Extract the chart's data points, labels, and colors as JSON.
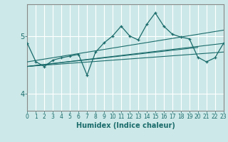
{
  "xlabel": "Humidex (Indice chaleur)",
  "xlim": [
    0,
    23
  ],
  "ylim": [
    3.7,
    5.55
  ],
  "yticks": [
    4,
    5
  ],
  "xticks": [
    0,
    1,
    2,
    3,
    4,
    5,
    6,
    7,
    8,
    9,
    10,
    11,
    12,
    13,
    14,
    15,
    16,
    17,
    18,
    19,
    20,
    21,
    22,
    23
  ],
  "bg_color": "#cde8e8",
  "grid_color": "#ffffff",
  "line_color": "#1a6b6b",
  "series": {
    "main": {
      "x": [
        0,
        1,
        2,
        3,
        4,
        5,
        6,
        7,
        8,
        9,
        10,
        11,
        12,
        13,
        14,
        15,
        16,
        17,
        18,
        19,
        20,
        21,
        22,
        23
      ],
      "y": [
        4.87,
        4.55,
        4.47,
        4.58,
        4.62,
        4.65,
        4.68,
        4.32,
        4.72,
        4.88,
        5.0,
        5.17,
        5.0,
        4.93,
        5.2,
        5.4,
        5.17,
        5.03,
        4.98,
        4.95,
        4.63,
        4.55,
        4.62,
        4.87
      ]
    },
    "trend1": {
      "x": [
        0,
        23
      ],
      "y": [
        4.55,
        5.1
      ]
    },
    "trend2": {
      "x": [
        0,
        23
      ],
      "y": [
        4.47,
        4.87
      ]
    },
    "trend3": {
      "x": [
        0,
        23
      ],
      "y": [
        4.47,
        4.72
      ]
    },
    "trend4": {
      "x": [
        0,
        20
      ],
      "y": [
        4.47,
        4.8
      ]
    }
  }
}
